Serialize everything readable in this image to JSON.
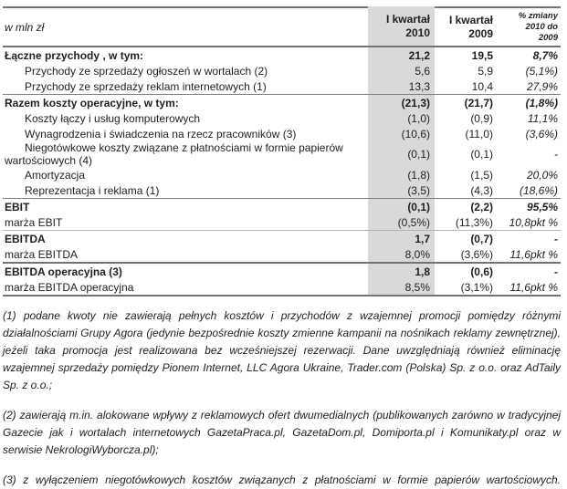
{
  "table": {
    "unit_label": "w mln zł",
    "columns": {
      "c2010": "I kwartał\n2010",
      "c2009": "I kwartał\n2009",
      "cpct": "% zmiany\n2010 do\n2009"
    },
    "rows": [
      {
        "label": "Łączne przychody , w tym:",
        "v2010": "21,2",
        "v2009": "19,5",
        "pct": "8,7%",
        "bold": true
      },
      {
        "label": "Przychody ze sprzedaży ogłoszeń w wortalach (2)",
        "v2010": "5,6",
        "v2009": "5,9",
        "pct": "(5,1%)",
        "indent": true
      },
      {
        "label": "Przychody ze sprzedaży reklam internetowych (1)",
        "v2010": "13,3",
        "v2009": "10,4",
        "pct": "27,9%",
        "indent": true
      },
      {
        "label": "Razem koszty operacyjne, w tym:",
        "v2010": "(21,3)",
        "v2009": "(21,7)",
        "pct": "(1,8%)",
        "bold": true,
        "rule": "medium"
      },
      {
        "label": "Koszty łączy i usług komputerowych",
        "v2010": "(1,0)",
        "v2009": "(0,9)",
        "pct": "11,1%",
        "indent": true
      },
      {
        "label": "Wynagrodzenia i świadczenia na rzecz pracowników (3)",
        "v2010": "(10,6)",
        "v2009": "(11,0)",
        "pct": "(3,6%)",
        "indent": true
      },
      {
        "label": "Niegotówkowe koszty związane z płatnościami w formie papierów wartościowych (4)",
        "v2010": "(0,1)",
        "v2009": "(0,1)",
        "pct": "-",
        "indent": true
      },
      {
        "label": "Amortyzacja",
        "v2010": "(1,8)",
        "v2009": "(1,5)",
        "pct": "20,0%",
        "indent": true
      },
      {
        "label": "Reprezentacja i reklama (1)",
        "v2010": "(3,5)",
        "v2009": "(4,3)",
        "pct": "(18,6%)",
        "indent": true
      },
      {
        "label": "EBIT",
        "v2010": "(0,1)",
        "v2009": "(2,2)",
        "pct": "95,5%",
        "bold": true,
        "rule": "medium"
      },
      {
        "label": "marża EBIT",
        "v2010": "(0,5%)",
        "v2009": "(11,3%)",
        "pct": "10,8pkt %"
      },
      {
        "label": "EBITDA",
        "v2010": "1,7",
        "v2009": "(0,7)",
        "pct": "-",
        "bold": true,
        "rule": "thin"
      },
      {
        "label": "marża EBITDA",
        "v2010": "8,0%",
        "v2009": "(3,6%)",
        "pct": "11,6pkt %"
      },
      {
        "label": "EBITDA operacyjna (3)",
        "v2010": "1,8",
        "v2009": "(0,6)",
        "pct": "-",
        "bold": true,
        "rule": "thick"
      },
      {
        "label": "marża EBITDA operacyjna",
        "v2010": "8,5%",
        "v2009": "(3,1%)",
        "pct": "11,6pkt %"
      }
    ]
  },
  "footnotes": [
    "(1) podane kwoty nie zawierają pełnych kosztów i przychodów z wzajemnej promocji pomiędzy różnymi działalnościami Grupy Agora (jedynie bezpośrednie koszty zmienne kampanii na nośnikach reklamy zewnętrznej), jeżeli taka promocja jest realizowana bez wcześniejszej rezerwacji. Dane uwzględniają również eliminację wzajemnej sprzedaży pomiędzy Pionem Internet, LLC Agora Ukraine, Trader.com (Polska) Sp. z o.o. oraz AdTaily Sp. z o.o.;",
    "(2) zawierają m.in. alokowane wpływy z reklamowych ofert dwumedialnych (publikowanych zarówno w tradycyjnej Gazecie jak i wortalach internetowych GazetaPraca.pl, GazetaDom.pl, Domiporta.pl i Komunikaty.pl oraz w serwisie NekrologiWyborcza.pl);",
    "(3) z wyłączeniem niegotówkowych kosztów związanych z płatnościami w formie papierów wartościowych."
  ],
  "colors": {
    "highlight_column": "#d9d9d9",
    "rule": "#737373",
    "text": "#1f1f1f"
  }
}
